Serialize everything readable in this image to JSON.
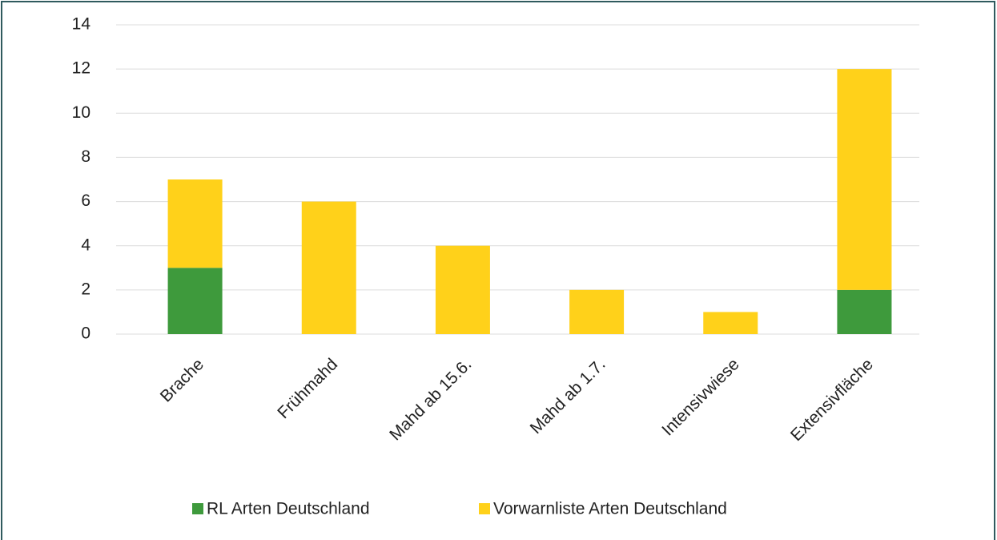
{
  "chart_data": {
    "type": "stacked_bar",
    "categories": [
      "Brache",
      "Frühmahd",
      "Mahd ab 15.6.",
      "Mahd ab 1.7.",
      "Intensivwiese",
      "Extensivfläche"
    ],
    "series": [
      {
        "name": "RL Arten Deutschland",
        "color": "#3e9a3c",
        "values": [
          3,
          0,
          0,
          0,
          0,
          2
        ]
      },
      {
        "name": "Vorwarnliste Arten Deutschland",
        "color": "#ffd11a",
        "values": [
          4,
          6,
          4,
          2,
          1,
          10
        ]
      }
    ],
    "ylim": [
      0,
      14
    ],
    "yticks": [
      0,
      2,
      4,
      6,
      8,
      10,
      12,
      14
    ],
    "grid": true,
    "legend": "bottom"
  }
}
